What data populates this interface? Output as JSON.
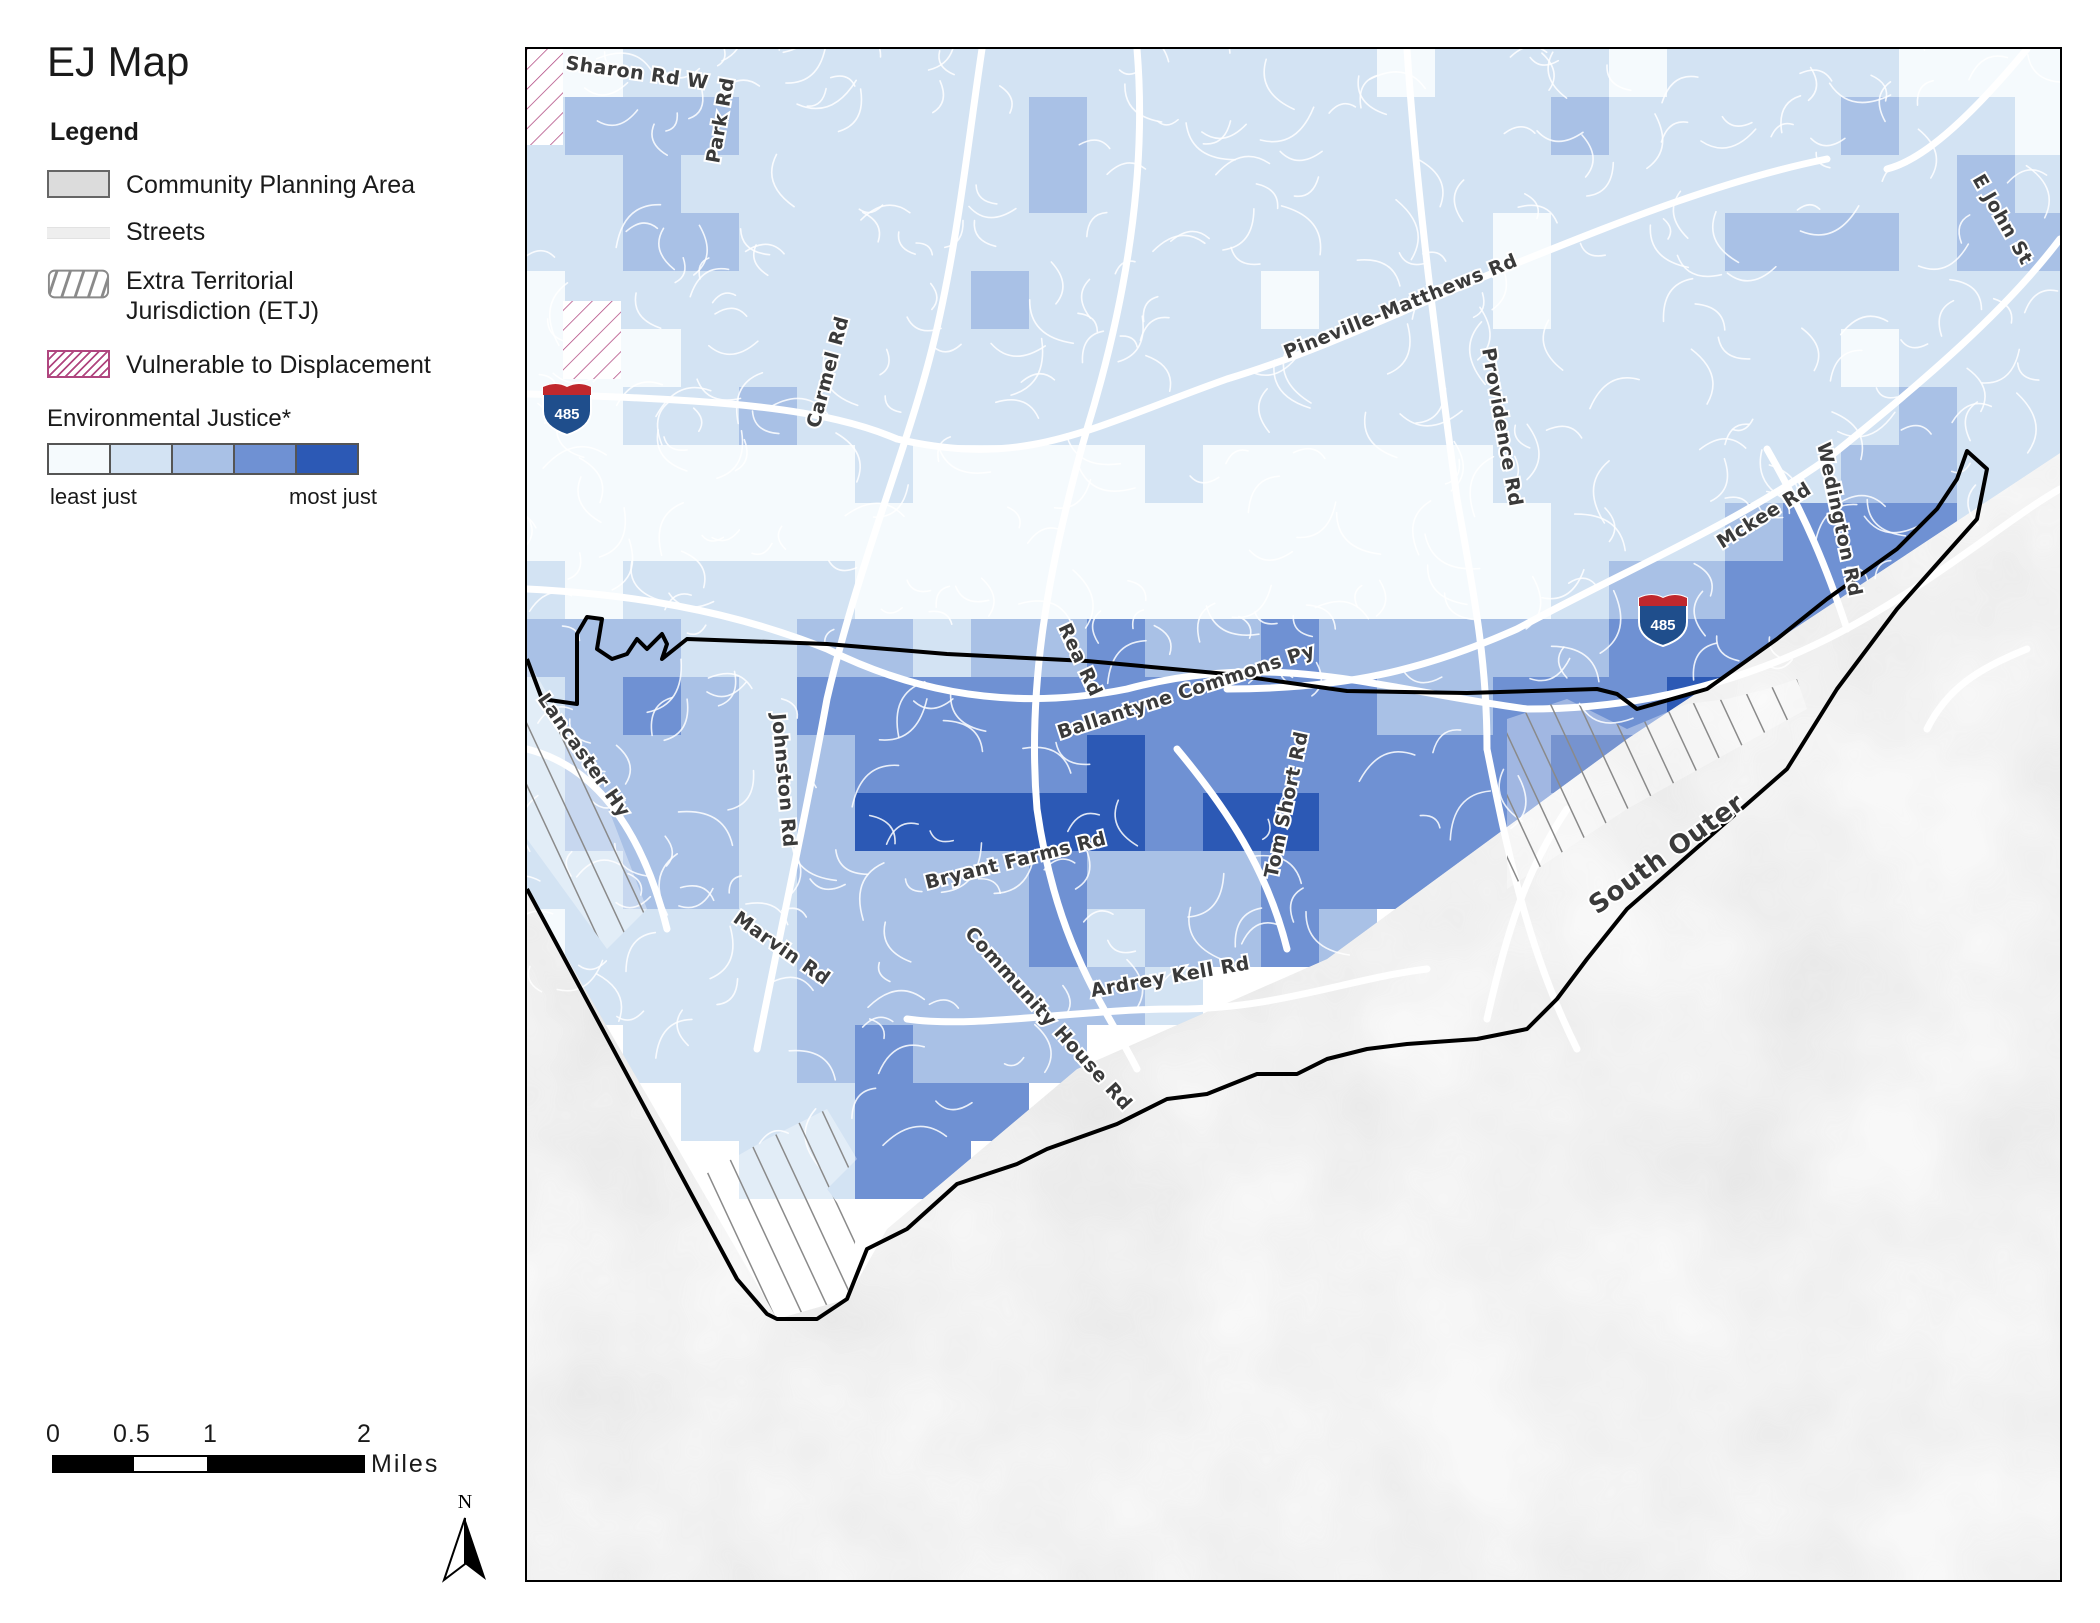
{
  "title": "EJ Map",
  "legend": {
    "heading": "Legend",
    "items": [
      {
        "label": "Community Planning Area",
        "icon": "community-planning-area-swatch"
      },
      {
        "label": "Streets",
        "icon": "streets-swatch"
      },
      {
        "label": "Extra Territorial Jurisdiction (ETJ)",
        "icon": "etj-hatch-swatch"
      },
      {
        "label": "Vulnerable to Displacement",
        "icon": "vulnerable-hatch-swatch"
      }
    ],
    "ej_label": "Environmental Justice*",
    "ej_ramp_colors": [
      "#f5fafd",
      "#d3e3f3",
      "#a9c1e6",
      "#6f91d3",
      "#2c59b5"
    ],
    "ej_low_label": "least just",
    "ej_high_label": "most just"
  },
  "scale_bar": {
    "ticks": [
      "0",
      "0.5",
      "1",
      "2"
    ],
    "unit": "Miles"
  },
  "north_arrow": {
    "label": "N"
  },
  "map": {
    "colors": {
      "ej_class_1": "#f5fafd",
      "ej_class_2": "#d3e3f3",
      "ej_class_3": "#a9c1e6",
      "ej_class_4": "#6f91d3",
      "ej_class_5": "#2c59b5",
      "boundary": "#000000",
      "etj_hatch": "#8a8a8a",
      "vulnerable_hatch": "#b0467f",
      "interstate_shield": "#1f4e8c",
      "interstate_top": "#c0282d"
    },
    "road_labels": [
      "Sharon Rd W",
      "Park Rd",
      "Carmel Rd",
      "Pineville-Matthews Rd",
      "Providence Rd",
      "E John St",
      "Mckee Rd",
      "Wedington Rd",
      "Rea Rd",
      "Ballantyne Commons Py",
      "Lancaster Hy",
      "Johnston Rd",
      "Tom Short Rd",
      "Bryant Farms Rd",
      "Marvin Rd",
      "Community House Rd",
      "Ardrey Kell Rd",
      "South Outer"
    ],
    "interstate_shields": [
      "485",
      "485"
    ]
  }
}
